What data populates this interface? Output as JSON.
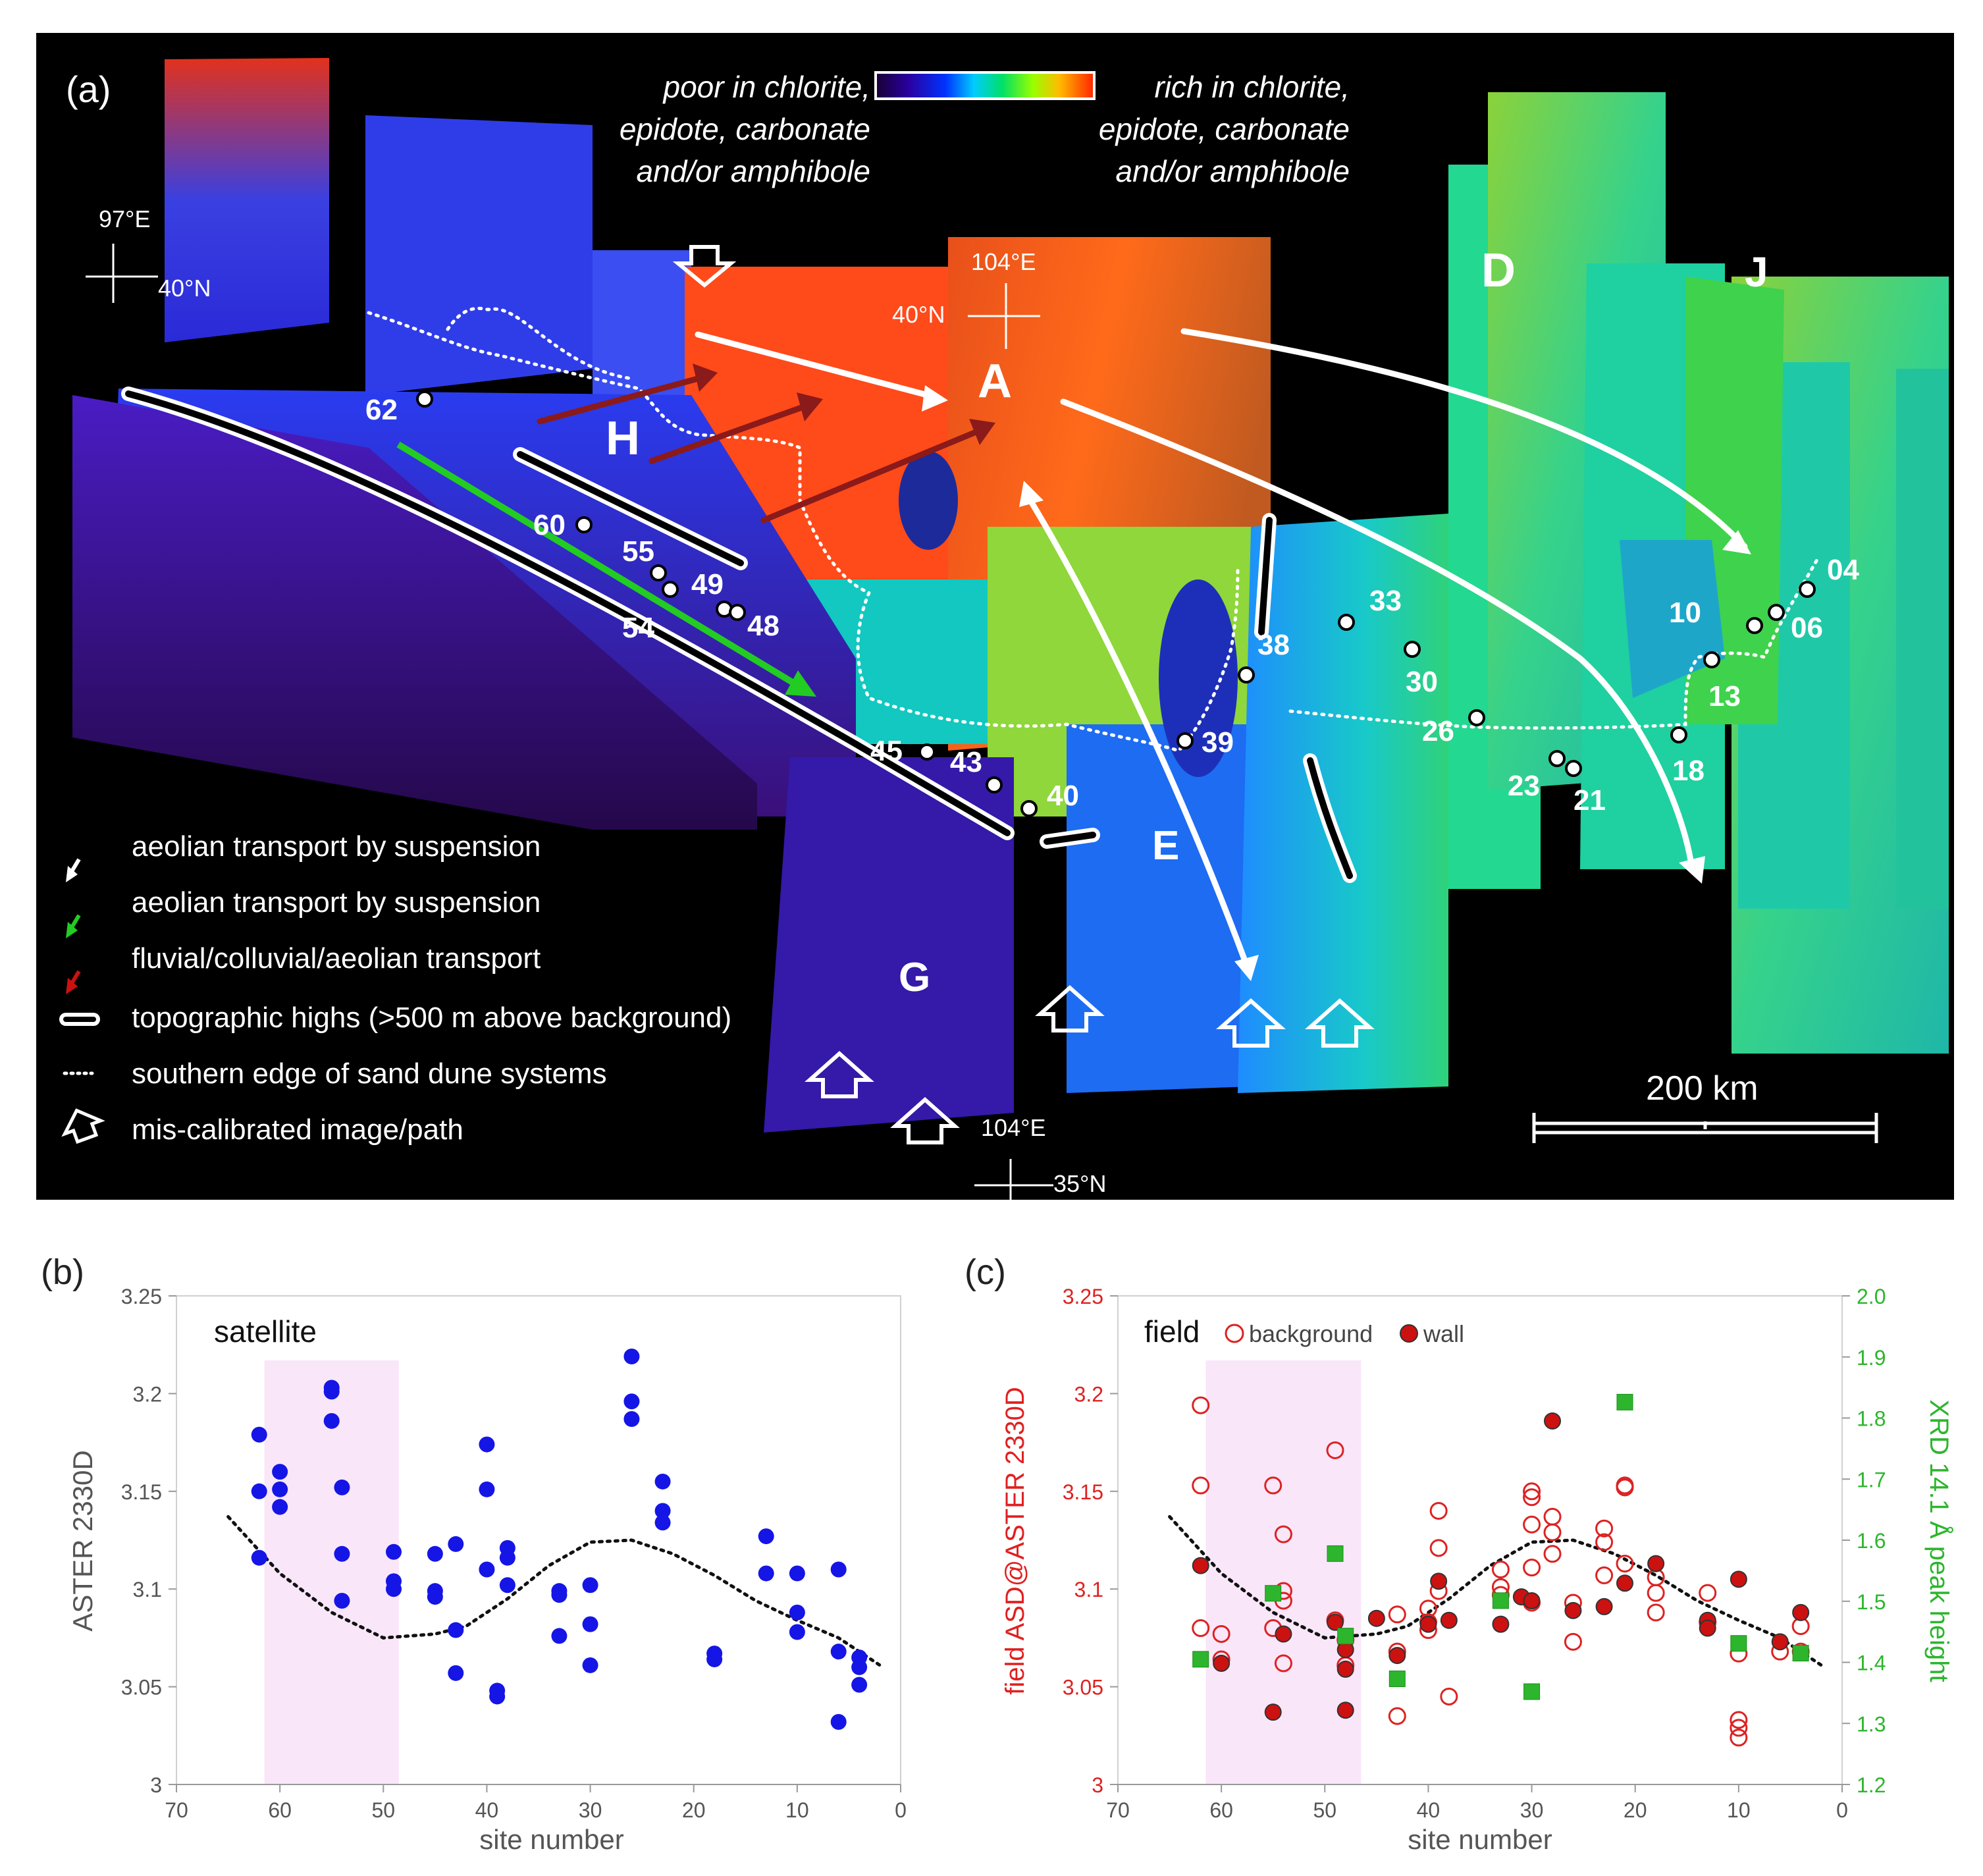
{
  "panel_a": {
    "label": "(a)",
    "colorbar_low": [
      "poor in chlorite,",
      "epidote, carbonate",
      "and/or amphibole"
    ],
    "colorbar_high": [
      "rich in chlorite,",
      "epidote, carbonate",
      "and/or amphibole"
    ],
    "coords": {
      "lon97": "97°E",
      "lat40_left": "40°N",
      "lon104_top": "104°E",
      "lat40_mid": "40°N",
      "lon104_bottom": "104°E",
      "lat35": "35°N"
    },
    "region_labels": [
      "A",
      "D",
      "J",
      "H",
      "E",
      "G"
    ],
    "sites": [
      "62",
      "60",
      "55",
      "54",
      "49",
      "48",
      "45",
      "43",
      "40",
      "39",
      "38",
      "33",
      "30",
      "26",
      "23",
      "21",
      "18",
      "13",
      "10",
      "06",
      "04"
    ],
    "legend": [
      {
        "symbol": "white-arrow",
        "label": "aeolian transport by suspension"
      },
      {
        "symbol": "green-arrow",
        "label": "aeolian transport by suspension"
      },
      {
        "symbol": "red-arrow",
        "label": "fluvial/colluvial/aeolian transport"
      },
      {
        "symbol": "topographic-high",
        "label": "topographic highs (>500 m above background)"
      },
      {
        "symbol": "dotted-line",
        "label": "southern edge of sand dune systems"
      },
      {
        "symbol": "hollow-arrow",
        "label": "mis-calibrated image/path"
      }
    ],
    "scale_bar": "200 km",
    "colors": {
      "white_arrow": "#ffffff",
      "green_arrow": "#22cc22",
      "red_arrow": "#8b1a1a"
    }
  },
  "chart_data": [
    {
      "panel": "(b)",
      "type": "scatter",
      "title": "satellite",
      "xlabel": "site number",
      "ylabel": "ASTER 2330D",
      "xlim": [
        70,
        0
      ],
      "ylim": [
        3,
        3.25
      ],
      "xticks": [
        70,
        60,
        50,
        40,
        30,
        20,
        10,
        0
      ],
      "yticks": [
        "3",
        "3.05",
        "3.1",
        "3.15",
        "3.2",
        "3.25"
      ],
      "highlight_x": [
        61.5,
        48.5
      ],
      "series": [
        {
          "name": "satellite",
          "color": "#1515e6",
          "points": [
            [
              62,
              3.179
            ],
            [
              62,
              3.15
            ],
            [
              62,
              3.116
            ],
            [
              60,
              3.16
            ],
            [
              60,
              3.151
            ],
            [
              60,
              3.142
            ],
            [
              55,
              3.203
            ],
            [
              55,
              3.201
            ],
            [
              55,
              3.186
            ],
            [
              54,
              3.152
            ],
            [
              54,
              3.118
            ],
            [
              54,
              3.094
            ],
            [
              49,
              3.119
            ],
            [
              49,
              3.104
            ],
            [
              49,
              3.1
            ],
            [
              45,
              3.118
            ],
            [
              45,
              3.099
            ],
            [
              45,
              3.096
            ],
            [
              43,
              3.123
            ],
            [
              43,
              3.079
            ],
            [
              43,
              3.057
            ],
            [
              40,
              3.174
            ],
            [
              40,
              3.151
            ],
            [
              40,
              3.11
            ],
            [
              39,
              3.048
            ],
            [
              39,
              3.045
            ],
            [
              38,
              3.121
            ],
            [
              38,
              3.116
            ],
            [
              38,
              3.102
            ],
            [
              33,
              3.099
            ],
            [
              33,
              3.097
            ],
            [
              33,
              3.076
            ],
            [
              30,
              3.102
            ],
            [
              30,
              3.082
            ],
            [
              30,
              3.061
            ],
            [
              26,
              3.219
            ],
            [
              26,
              3.196
            ],
            [
              26,
              3.187
            ],
            [
              23,
              3.155
            ],
            [
              23,
              3.14
            ],
            [
              23,
              3.134
            ],
            [
              18,
              3.067
            ],
            [
              18,
              3.064
            ],
            [
              13,
              3.127
            ],
            [
              13,
              3.108
            ],
            [
              10,
              3.108
            ],
            [
              10,
              3.088
            ],
            [
              10,
              3.078
            ],
            [
              6,
              3.11
            ],
            [
              6,
              3.068
            ],
            [
              6,
              3.032
            ],
            [
              4,
              3.065
            ],
            [
              4,
              3.06
            ],
            [
              4,
              3.051
            ]
          ]
        }
      ],
      "trend": [
        [
          65,
          3.137
        ],
        [
          60,
          3.108
        ],
        [
          55,
          3.088
        ],
        [
          50,
          3.075
        ],
        [
          45,
          3.077
        ],
        [
          42,
          3.081
        ],
        [
          38,
          3.095
        ],
        [
          34,
          3.112
        ],
        [
          30,
          3.124
        ],
        [
          26,
          3.125
        ],
        [
          22,
          3.118
        ],
        [
          18,
          3.107
        ],
        [
          14,
          3.094
        ],
        [
          10,
          3.084
        ],
        [
          6,
          3.075
        ],
        [
          2,
          3.061
        ]
      ]
    },
    {
      "panel": "(c)",
      "type": "scatter",
      "title": "field",
      "xlabel": "site number",
      "ylabel": "field ASD@ASTER 2330D",
      "y2label": "XRD 14.1 Å peak height",
      "xlim": [
        70,
        0
      ],
      "ylim": [
        3,
        3.25
      ],
      "y2lim": [
        1.2,
        2.0
      ],
      "xticks": [
        70,
        60,
        50,
        40,
        30,
        20,
        10,
        0
      ],
      "yticks": [
        "3",
        "3.05",
        "3.1",
        "3.15",
        "3.2",
        "3.25"
      ],
      "y2ticks": [
        "1.2",
        "1.3",
        "1.4",
        "1.5",
        "1.6",
        "1.7",
        "1.8",
        "1.9",
        "2.0"
      ],
      "highlight_x": [
        61.5,
        46.5
      ],
      "legend": [
        "background",
        "wall"
      ],
      "series": [
        {
          "name": "background",
          "axis": "left",
          "color": "#dd2222",
          "points": [
            [
              62,
              3.194
            ],
            [
              62,
              3.153
            ],
            [
              62,
              3.08
            ],
            [
              60,
              3.077
            ],
            [
              60,
              3.064
            ],
            [
              55,
              3.153
            ],
            [
              55,
              3.08
            ],
            [
              54,
              3.128
            ],
            [
              54,
              3.099
            ],
            [
              54,
              3.094
            ],
            [
              54,
              3.062
            ],
            [
              49,
              3.171
            ],
            [
              49,
              3.084
            ],
            [
              48,
              3.074
            ],
            [
              48,
              3.061
            ],
            [
              43,
              3.087
            ],
            [
              43,
              3.068
            ],
            [
              43,
              3.035
            ],
            [
              40,
              3.09
            ],
            [
              40,
              3.083
            ],
            [
              40,
              3.079
            ],
            [
              39,
              3.14
            ],
            [
              39,
              3.121
            ],
            [
              39,
              3.099
            ],
            [
              38,
              3.045
            ],
            [
              33,
              3.11
            ],
            [
              33,
              3.101
            ],
            [
              33,
              3.097
            ],
            [
              30,
              3.15
            ],
            [
              30,
              3.147
            ],
            [
              30,
              3.133
            ],
            [
              30,
              3.111
            ],
            [
              30,
              3.093
            ],
            [
              28,
              3.137
            ],
            [
              28,
              3.129
            ],
            [
              28,
              3.118
            ],
            [
              26,
              3.093
            ],
            [
              26,
              3.073
            ],
            [
              23,
              3.131
            ],
            [
              23,
              3.124
            ],
            [
              23,
              3.107
            ],
            [
              21,
              3.153
            ],
            [
              21,
              3.152
            ],
            [
              21,
              3.113
            ],
            [
              18,
              3.106
            ],
            [
              18,
              3.098
            ],
            [
              18,
              3.088
            ],
            [
              13,
              3.098
            ],
            [
              13,
              3.083
            ],
            [
              10,
              3.067
            ],
            [
              10,
              3.033
            ],
            [
              10,
              3.029
            ],
            [
              10,
              3.024
            ],
            [
              6,
              3.068
            ],
            [
              4,
              3.081
            ],
            [
              4,
              3.068
            ]
          ]
        },
        {
          "name": "wall",
          "axis": "left",
          "color": "#cc1111",
          "points": [
            [
              62,
              3.112
            ],
            [
              60,
              3.062
            ],
            [
              55,
              3.037
            ],
            [
              54,
              3.077
            ],
            [
              49,
              3.083
            ],
            [
              48,
              3.069
            ],
            [
              48,
              3.059
            ],
            [
              48,
              3.038
            ],
            [
              45,
              3.085
            ],
            [
              43,
              3.066
            ],
            [
              40,
              3.082
            ],
            [
              39,
              3.104
            ],
            [
              38,
              3.084
            ],
            [
              33,
              3.082
            ],
            [
              31,
              3.096
            ],
            [
              30,
              3.094
            ],
            [
              28,
              3.186
            ],
            [
              26,
              3.089
            ],
            [
              23,
              3.091
            ],
            [
              21,
              3.103
            ],
            [
              18,
              3.113
            ],
            [
              13,
              3.084
            ],
            [
              13,
              3.08
            ],
            [
              10,
              3.105
            ],
            [
              6,
              3.073
            ],
            [
              4,
              3.088
            ]
          ]
        },
        {
          "name": "XRD",
          "axis": "right",
          "color": "#2db52d",
          "points": [
            [
              62,
              1.405
            ],
            [
              55,
              1.513
            ],
            [
              49,
              1.578
            ],
            [
              48,
              1.443
            ],
            [
              43,
              1.373
            ],
            [
              33,
              1.501
            ],
            [
              30,
              1.352
            ],
            [
              21,
              1.826
            ],
            [
              10,
              1.431
            ],
            [
              4,
              1.415
            ]
          ]
        }
      ],
      "trend": [
        [
          65,
          3.137
        ],
        [
          60,
          3.108
        ],
        [
          55,
          3.088
        ],
        [
          50,
          3.075
        ],
        [
          45,
          3.077
        ],
        [
          42,
          3.081
        ],
        [
          38,
          3.095
        ],
        [
          34,
          3.112
        ],
        [
          30,
          3.124
        ],
        [
          26,
          3.125
        ],
        [
          22,
          3.118
        ],
        [
          18,
          3.107
        ],
        [
          14,
          3.094
        ],
        [
          10,
          3.084
        ],
        [
          6,
          3.075
        ],
        [
          2,
          3.061
        ]
      ]
    }
  ]
}
